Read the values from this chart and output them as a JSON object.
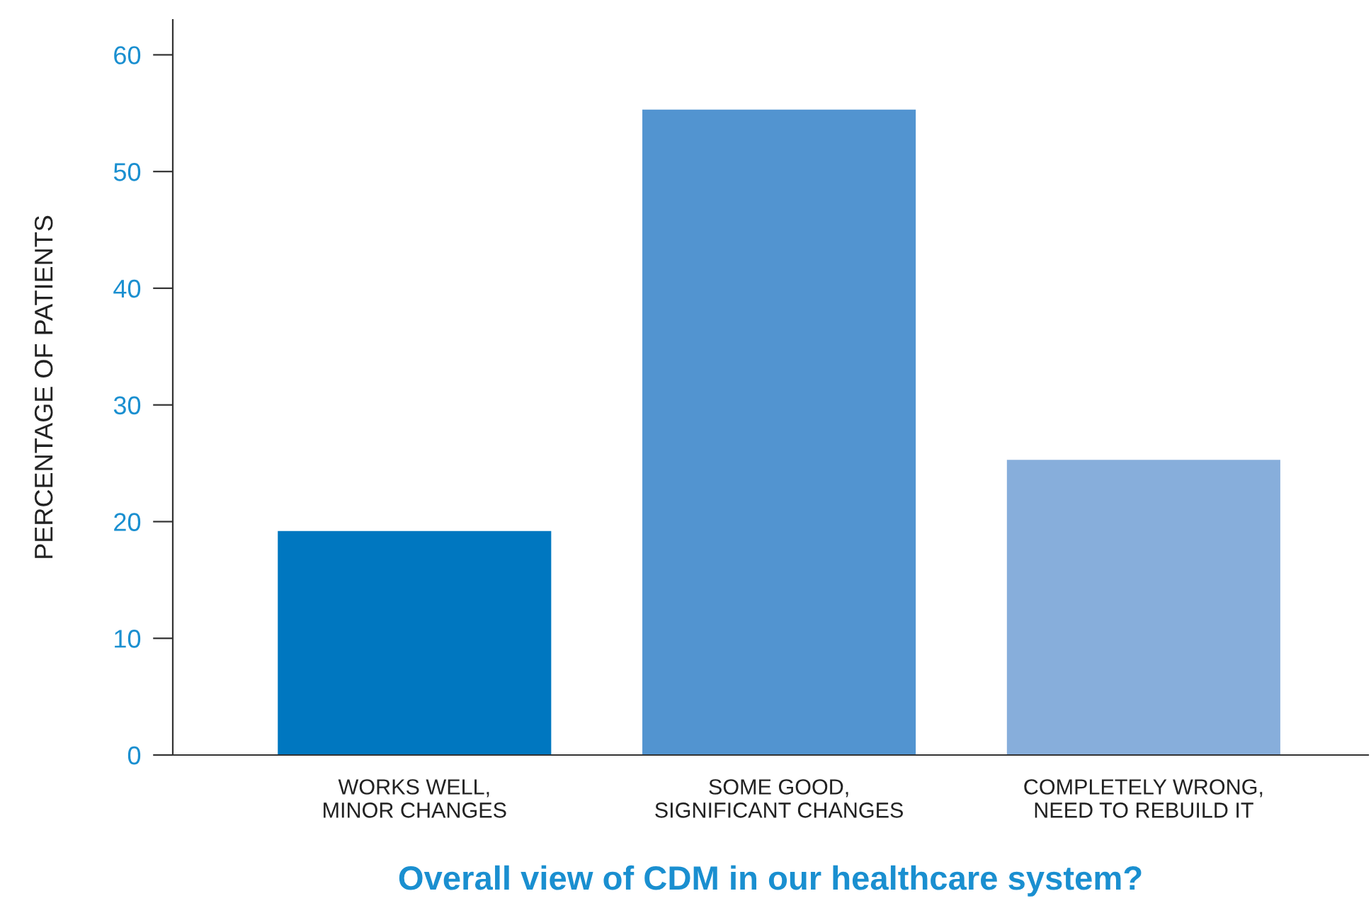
{
  "chart_data": {
    "type": "bar",
    "xlabel": "Overall view of CDM in our healthcare system?",
    "ylabel": "PERCENTAGE OF PATIENTS",
    "categories": [
      "WORKS WELL,\nMINOR CHANGES",
      "SOME GOOD,\nSIGNIFICANT CHANGES",
      "COMPLETELY WRONG,\nNEED TO REBUILD IT"
    ],
    "values": [
      19.2,
      55.3,
      25.3
    ],
    "colors": [
      "#0077c0",
      "#5294d0",
      "#87aedb"
    ],
    "ylim": [
      0,
      63
    ],
    "yticks": [
      0,
      10,
      20,
      30,
      40,
      50,
      60
    ],
    "grid": false,
    "legend": false
  }
}
